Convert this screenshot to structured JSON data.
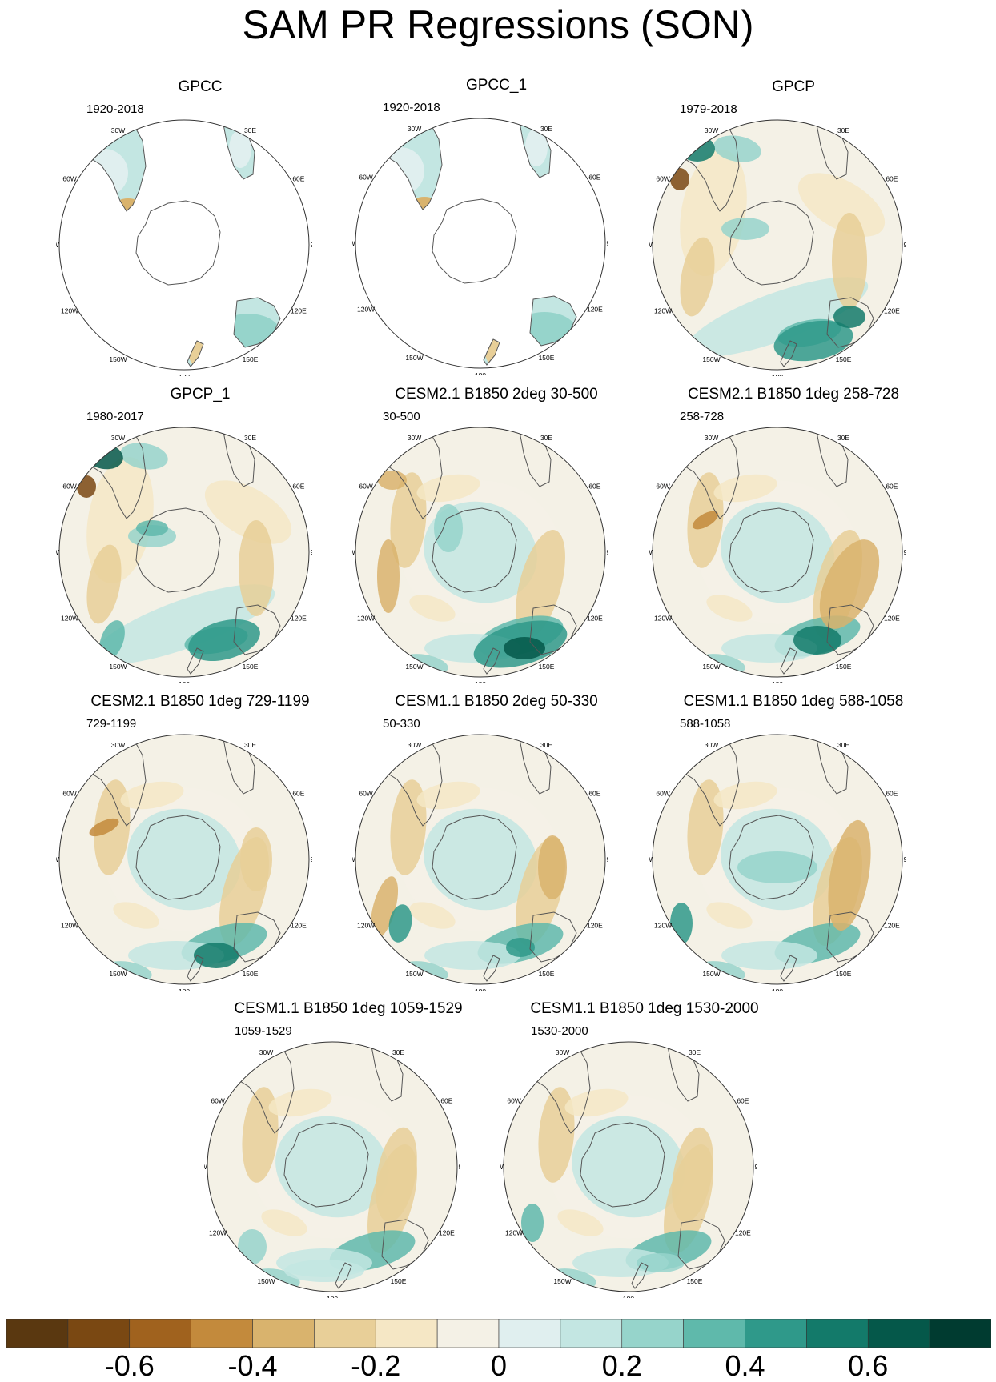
{
  "title": "SAM PR Regressions (SON)",
  "longitude_labels": [
    "0",
    "30E",
    "60E",
    "90E",
    "120E",
    "150E",
    "180",
    "150W",
    "120W",
    "90W",
    "60W",
    "30W"
  ],
  "panels": [
    {
      "title": "GPCC",
      "period": "1920-2018",
      "coverage": "land"
    },
    {
      "title": "GPCC_1",
      "period": "1920-2018",
      "coverage": "land"
    },
    {
      "title": "GPCP",
      "period": "1979-2018",
      "coverage": "full"
    },
    {
      "title": "GPCP_1",
      "period": "1980-2017",
      "coverage": "full"
    },
    {
      "title": "CESM2.1 B1850 2deg 30-500",
      "period": "30-500",
      "coverage": "full"
    },
    {
      "title": "CESM2.1 B1850 1deg 258-728",
      "period": "258-728",
      "coverage": "full"
    },
    {
      "title": "CESM2.1 B1850 1deg 729-1199",
      "period": "729-1199",
      "coverage": "full"
    },
    {
      "title": "CESM1.1 B1850 2deg 50-330",
      "period": "50-330",
      "coverage": "full"
    },
    {
      "title": "CESM1.1 B1850 1deg 588-1058",
      "period": "588-1058",
      "coverage": "full"
    },
    {
      "title": "CESM1.1 B1850 1deg 1059-1529",
      "period": "1059-1529",
      "coverage": "full"
    },
    {
      "title": "CESM1.1 B1850 1deg 1530-2000",
      "period": "1530-2000",
      "coverage": "full"
    }
  ],
  "colorbar": {
    "colors": [
      "#5a3810",
      "#7a4812",
      "#a0621e",
      "#c38a3c",
      "#d9b36d",
      "#e8cf98",
      "#f5e7c5",
      "#f4f1e6",
      "#e0efef",
      "#c3e6e2",
      "#96d4cb",
      "#5fb9ab",
      "#2f998a",
      "#137a6a",
      "#05584a",
      "#003b30"
    ],
    "tick_labels": [
      "-0.6",
      "-0.4",
      "-0.2",
      "0",
      "0.2",
      "0.4",
      "0.6"
    ],
    "tick_values": [
      -0.6,
      -0.4,
      -0.2,
      0,
      0.2,
      0.4,
      0.6
    ],
    "range": [
      -0.8,
      0.8
    ]
  }
}
